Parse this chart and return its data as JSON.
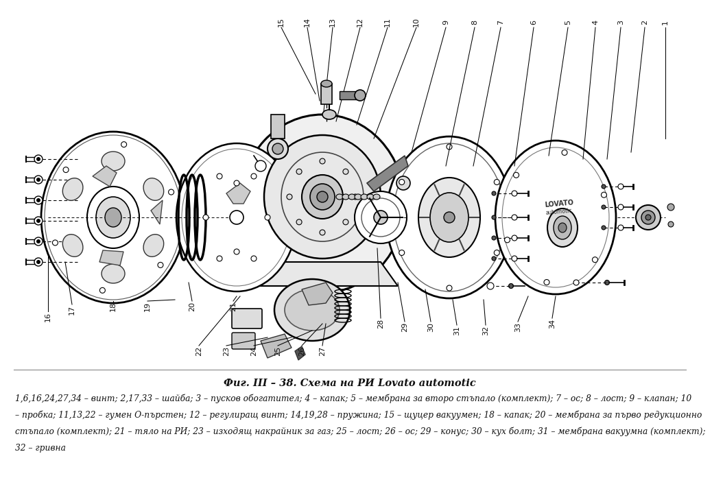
{
  "title": "Фиг. III – 38. Схема на РИ Lovato automotic",
  "caption_line1": "1,6,16,24,27,34 – винт; 2,17,33 – шайба; 3 – пусков обогатител; 4 – капак; 5 – мембрана за второ стъпало (комплект); 7 – ос; 8 – лост; 9 – клапан; 10",
  "caption_line2": "– пробка; 11,13,22 – гумен О-пърстен; 12 – регулиращ винт; 14,19,28 – пружина; 15 – щуцер вакуумен; 18 – капак; 20 – мембрана за първо редукционно",
  "caption_line3": "стъпало (комплект); 21 – тяло на РИ; 23 – изходящ накрайник за газ; 25 – лост; 26 – ос; 29 – конус; 30 – кух болт; 31 – мембрана вакуумна (комплект);",
  "caption_line4": "32 – гривна",
  "bg_color": "#ffffff",
  "text_color": "#111111",
  "title_fontsize": 10.5,
  "caption_fontsize": 8.8,
  "fig_width": 10.0,
  "fig_height": 6.77
}
